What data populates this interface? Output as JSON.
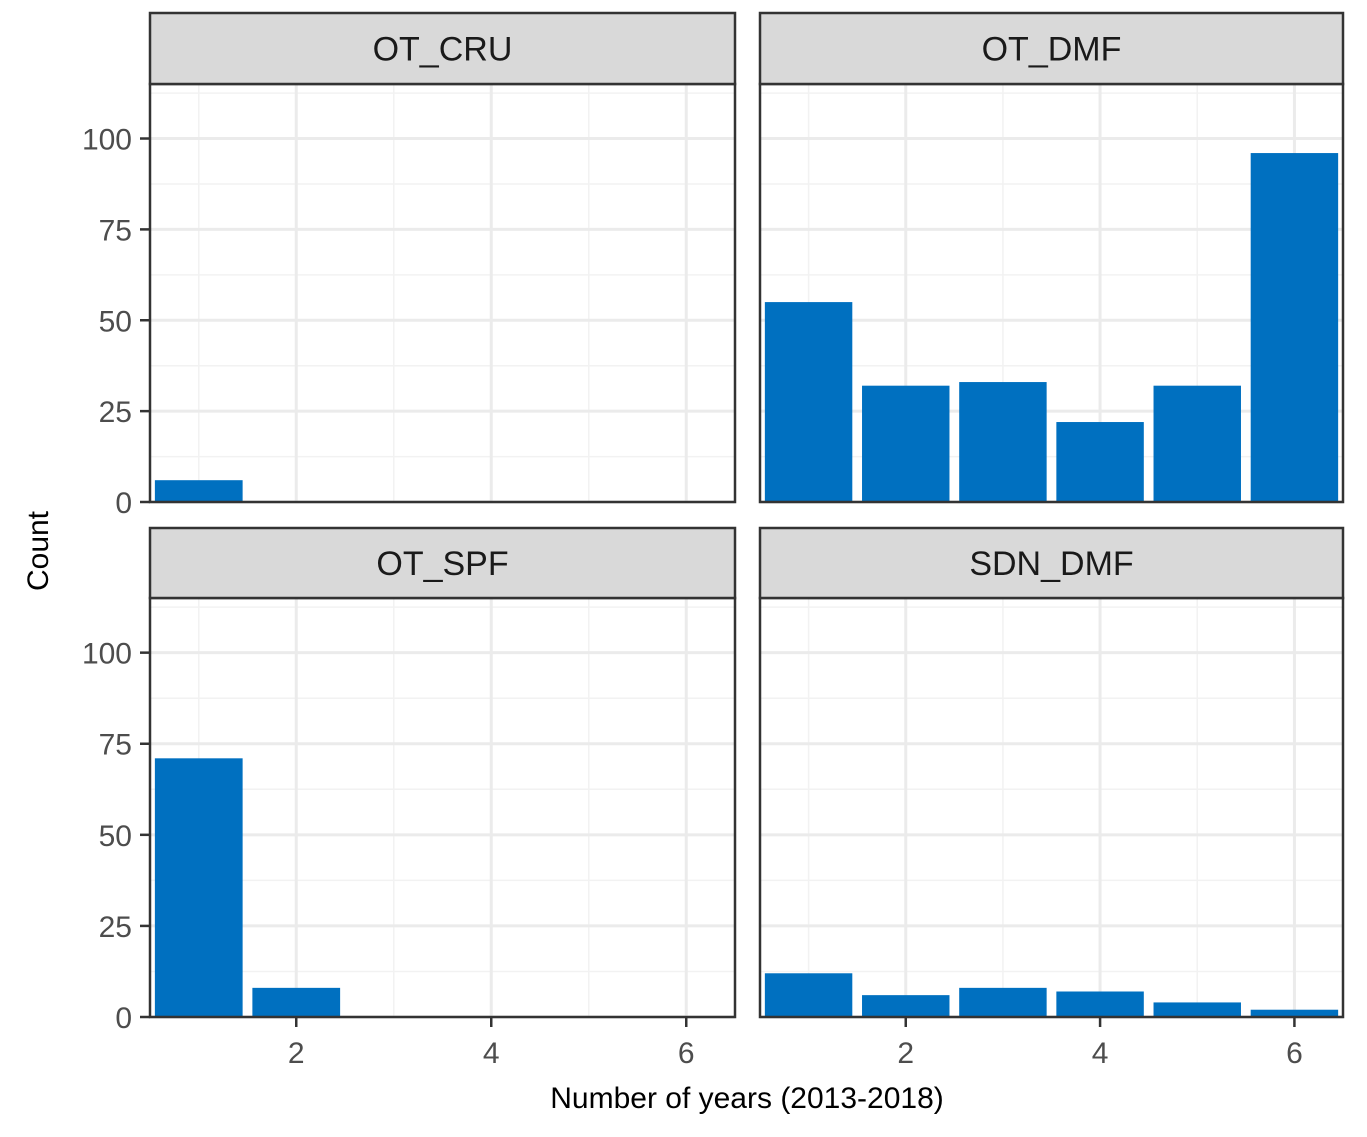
{
  "chart_data": {
    "type": "bar",
    "layout": "facet-grid-2x2",
    "xlabel": "Number of years (2013-2018)",
    "ylabel": "Count",
    "xlim": [
      0.5,
      6.5
    ],
    "ylim": [
      0,
      115
    ],
    "x_ticks": [
      2,
      4,
      6
    ],
    "y_ticks": [
      0,
      25,
      50,
      75,
      100
    ],
    "grid": true,
    "bar_color": "#0070C0",
    "panels": [
      {
        "label": "OT_CRU",
        "x": [
          1,
          2,
          3,
          4,
          5,
          6
        ],
        "values": [
          6,
          0,
          0,
          0,
          0,
          0
        ]
      },
      {
        "label": "OT_DMF",
        "x": [
          1,
          2,
          3,
          4,
          5,
          6
        ],
        "values": [
          55,
          32,
          33,
          22,
          32,
          96
        ]
      },
      {
        "label": "OT_SPF",
        "x": [
          1,
          2,
          3,
          4,
          5,
          6
        ],
        "values": [
          71,
          8,
          0,
          0,
          0,
          0
        ]
      },
      {
        "label": "SDN_DMF",
        "x": [
          1,
          2,
          3,
          4,
          5,
          6
        ],
        "values": [
          12,
          6,
          8,
          7,
          4,
          2
        ]
      }
    ]
  }
}
